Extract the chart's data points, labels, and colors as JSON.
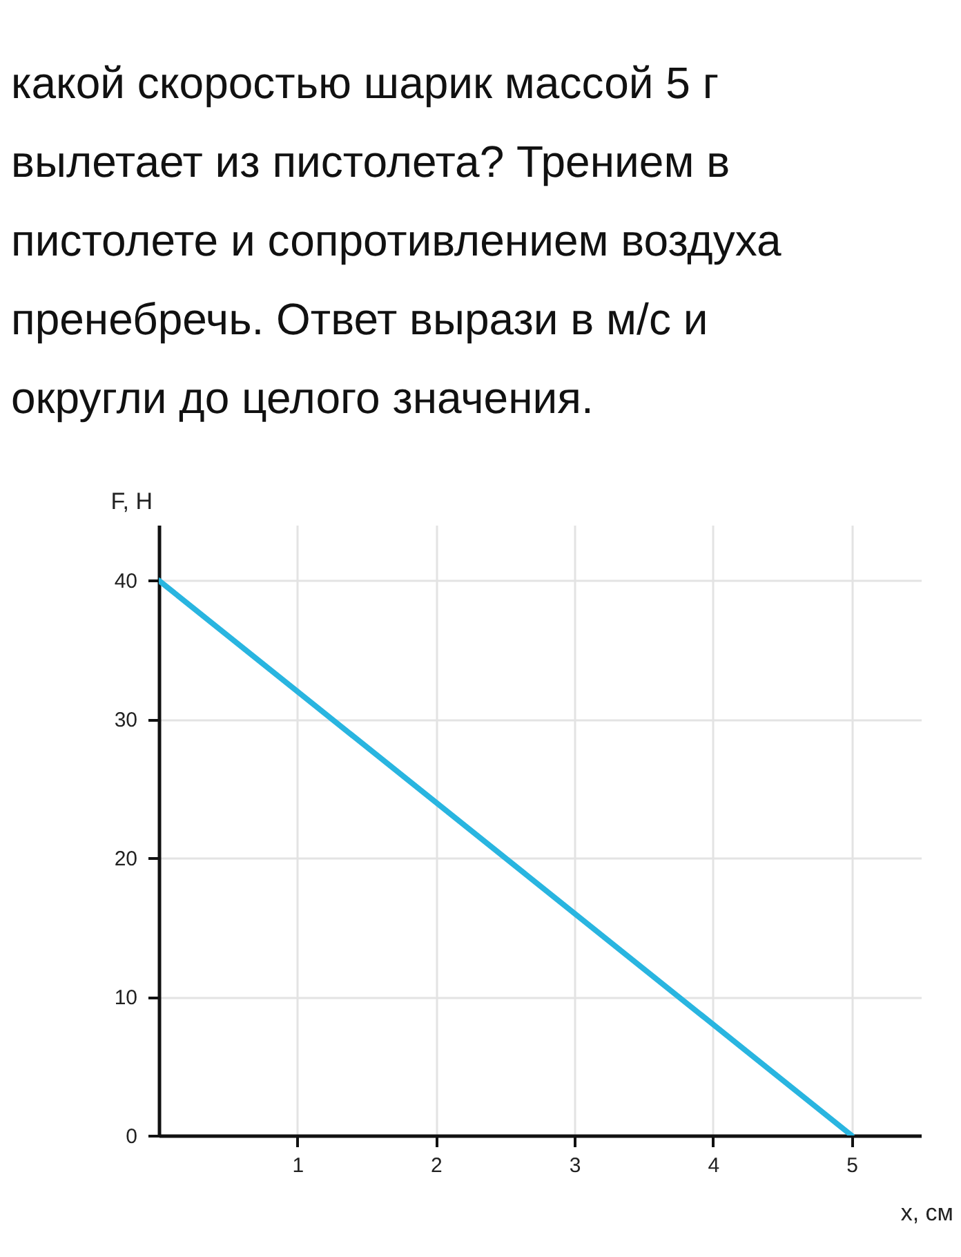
{
  "chart_data": {
    "type": "line",
    "title": "какой скоростью шарик массой 5 г вылетает из пистолета? Трением в пистолете и сопротивлением воздуха пренебречь. Ответ вырази в м/с и округли до целого значения.",
    "xlabel": "x, см",
    "ylabel": "F, Н",
    "x": [
      0,
      5
    ],
    "series": [
      {
        "color": "#29b5e0",
        "values": [
          40,
          0
        ]
      }
    ],
    "xlim": [
      0,
      5.5
    ],
    "ylim": [
      0,
      44
    ],
    "xticks": [
      1,
      2,
      3,
      4,
      5
    ],
    "yticks": [
      0,
      10,
      20,
      30,
      40
    ],
    "grid": true,
    "marker": "none",
    "line_style": "solid"
  }
}
